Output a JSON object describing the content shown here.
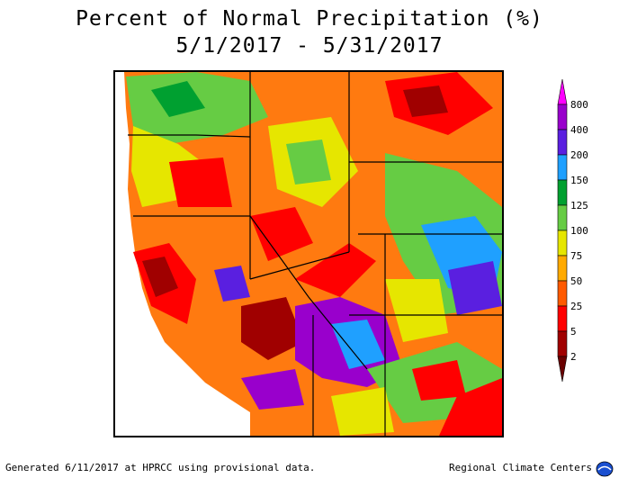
{
  "title": {
    "line1": "Percent of Normal Precipitation (%)",
    "line2": "5/1/2017 - 5/31/2017"
  },
  "legend": {
    "bins": [
      {
        "label": "800",
        "color": "#ff00ff"
      },
      {
        "label": "400",
        "color": "#9900cc"
      },
      {
        "label": "200",
        "color": "#5a1fe0"
      },
      {
        "label": "150",
        "color": "#1fa0ff"
      },
      {
        "label": "125",
        "color": "#00a030"
      },
      {
        "label": "100",
        "color": "#66cc44"
      },
      {
        "label": "75",
        "color": "#e6e600"
      },
      {
        "label": "50",
        "color": "#ffaa00"
      },
      {
        "label": "25",
        "color": "#ff5a00"
      },
      {
        "label": "5",
        "color": "#ff0000"
      },
      {
        "label": "2",
        "color": "#a00000"
      },
      {
        "label": "",
        "color": "#6a0000"
      }
    ]
  },
  "footer": {
    "left": "Generated 6/11/2017 at HPRCC using provisional data.",
    "right": "Regional Climate Centers"
  },
  "colors": {
    "background": "#ffffff",
    "border": "#000000"
  }
}
